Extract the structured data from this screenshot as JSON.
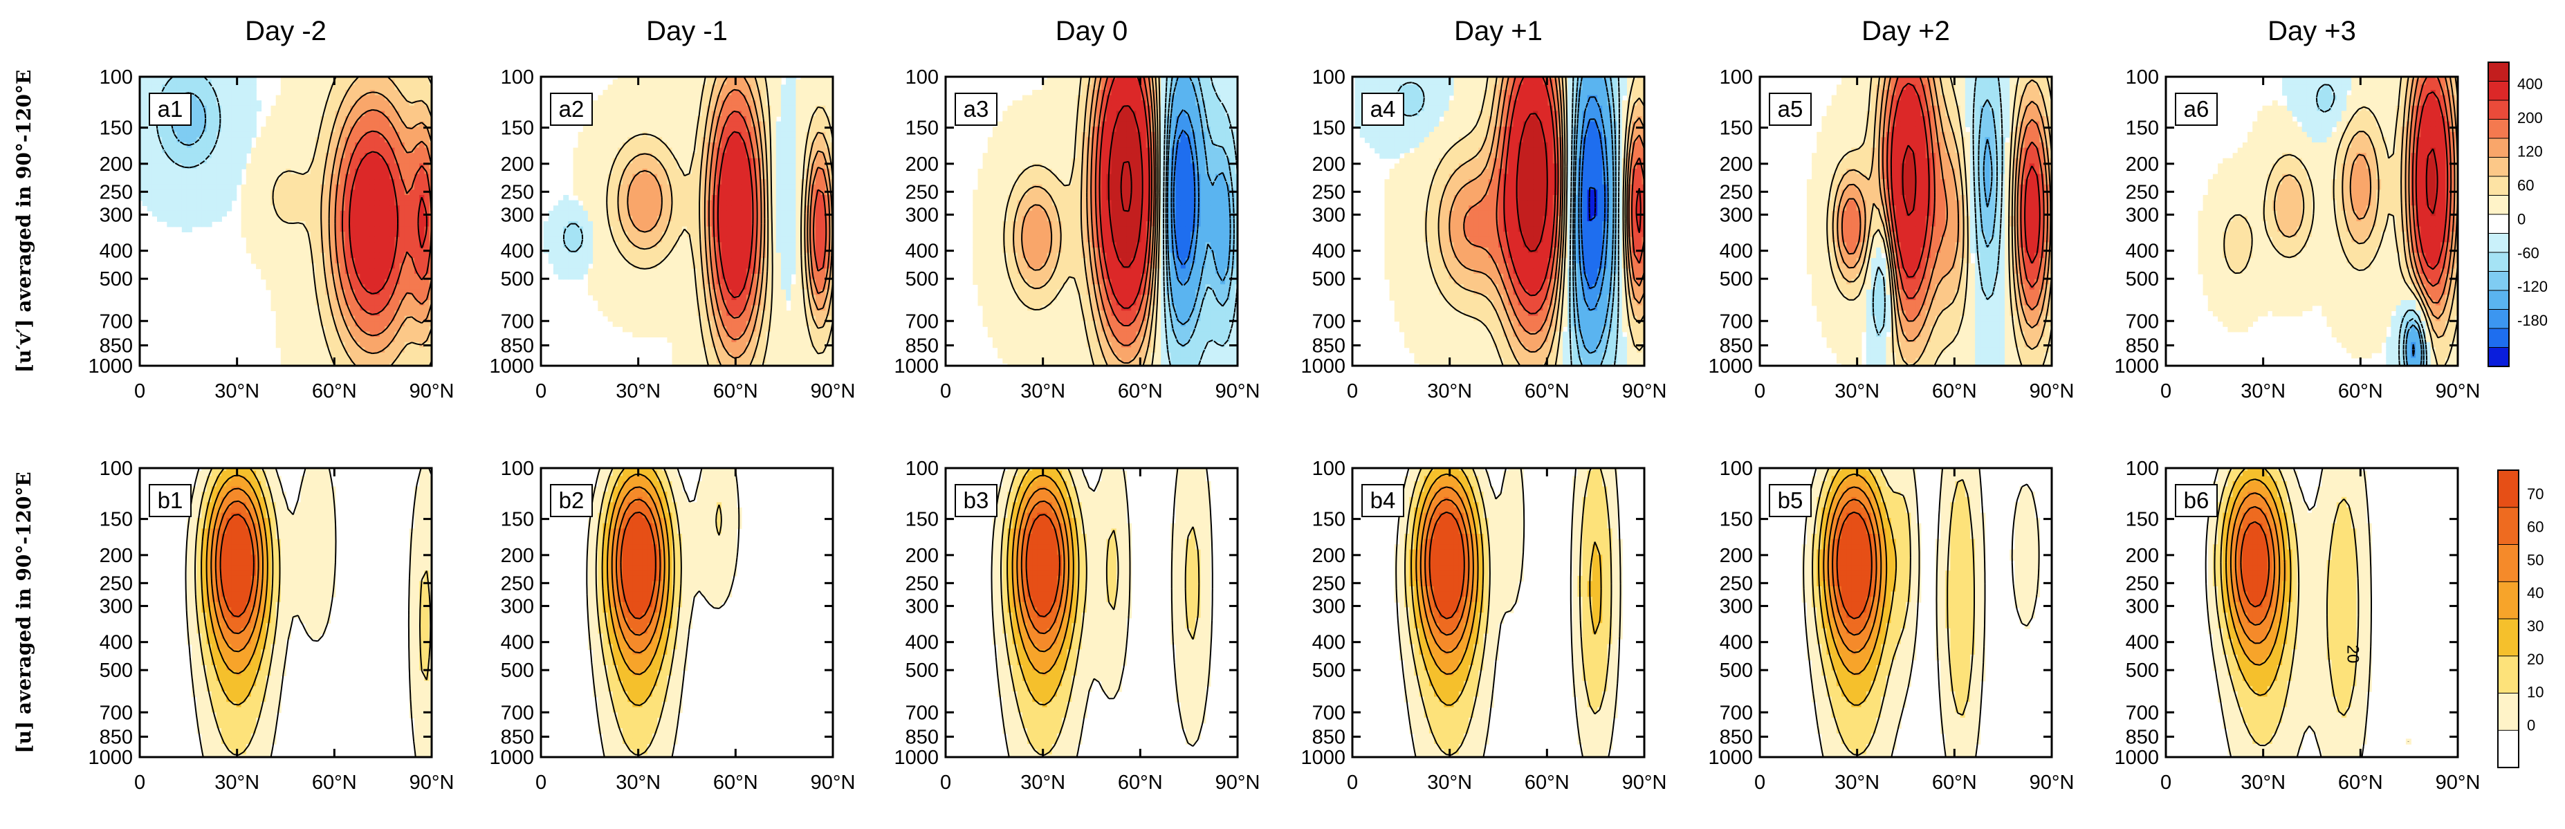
{
  "chart_data": {
    "type": "heatmap",
    "figure_kind": "contour panels (latitude x pressure)",
    "columns": [
      "Day -2",
      "Day -1",
      "Day 0",
      "Day +1",
      "Day +2",
      "Day +3"
    ],
    "x_ticks": [
      "0",
      "30°N",
      "60°N",
      "90°N"
    ],
    "x_range": [
      0,
      90
    ],
    "y_ticks": [
      "100",
      "150",
      "200",
      "250",
      "300",
      "400",
      "500",
      "700",
      "850",
      "1000"
    ],
    "y_tick_values": [
      100,
      150,
      200,
      250,
      300,
      400,
      500,
      700,
      850,
      1000
    ],
    "y_range": [
      100,
      1000
    ],
    "y_scale": "log, inverted",
    "rows": [
      {
        "ylabel": "[u′v′] averaged in 90°-120°E",
        "panels": [
          {
            "label": "a1",
            "features": [
              {
                "lat": 72,
                "p": 320,
                "value": 280,
                "wlat": 9,
                "wlogp": 0.3
              },
              {
                "lat": 88,
                "p": 320,
                "value": 150,
                "wlat": 3,
                "wlogp": 0.25
              },
              {
                "lat": 15,
                "p": 140,
                "value": -80,
                "wlat": 7,
                "wlogp": 0.12
              },
              {
                "lat": 45,
                "p": 260,
                "value": 40,
                "wlat": 5,
                "wlogp": 0.1
              }
            ]
          },
          {
            "label": "a2",
            "features": [
              {
                "lat": 60,
                "p": 300,
                "value": 300,
                "wlat": 6,
                "wlogp": 0.32
              },
              {
                "lat": 86,
                "p": 340,
                "value": 200,
                "wlat": 3,
                "wlogp": 0.22
              },
              {
                "lat": 32,
                "p": 270,
                "value": 120,
                "wlat": 7,
                "wlogp": 0.14
              },
              {
                "lat": 10,
                "p": 360,
                "value": -50,
                "wlat": 3,
                "wlogp": 0.05
              },
              {
                "lat": 74,
                "p": 260,
                "value": -40,
                "wlat": 3,
                "wlogp": 0.2
              }
            ]
          },
          {
            "label": "a3",
            "features": [
              {
                "lat": 56,
                "p": 240,
                "value": 420,
                "wlat": 7,
                "wlogp": 0.35
              },
              {
                "lat": 72,
                "p": 260,
                "value": -200,
                "wlat": 6,
                "wlogp": 0.35
              },
              {
                "lat": 86,
                "p": 340,
                "value": -90,
                "wlat": 3,
                "wlogp": 0.25
              },
              {
                "lat": 28,
                "p": 360,
                "value": 120,
                "wlat": 6,
                "wlogp": 0.15
              }
            ]
          },
          {
            "label": "a4",
            "features": [
              {
                "lat": 56,
                "p": 230,
                "value": 380,
                "wlat": 7,
                "wlogp": 0.35
              },
              {
                "lat": 73,
                "p": 270,
                "value": -200,
                "wlat": 6,
                "wlogp": 0.4
              },
              {
                "lat": 88,
                "p": 290,
                "value": 220,
                "wlat": 3,
                "wlogp": 0.25
              },
              {
                "lat": 36,
                "p": 330,
                "value": 120,
                "wlat": 8,
                "wlogp": 0.18
              },
              {
                "lat": 18,
                "p": 120,
                "value": -40,
                "wlat": 6,
                "wlogp": 0.08
              }
            ]
          },
          {
            "label": "a5",
            "features": [
              {
                "lat": 46,
                "p": 230,
                "value": 320,
                "wlat": 6,
                "wlogp": 0.35
              },
              {
                "lat": 84,
                "p": 300,
                "value": 240,
                "wlat": 4,
                "wlogp": 0.28
              },
              {
                "lat": 28,
                "p": 330,
                "value": 150,
                "wlat": 4,
                "wlogp": 0.14
              },
              {
                "lat": 70,
                "p": 220,
                "value": -90,
                "wlat": 4,
                "wlogp": 0.3
              },
              {
                "lat": 38,
                "p": 500,
                "value": -120,
                "wlat": 3,
                "wlogp": 0.18
              },
              {
                "lat": 60,
                "p": 320,
                "value": 90,
                "wlat": 4,
                "wlogp": 0.25
              }
            ]
          },
          {
            "label": "a6",
            "features": [
              {
                "lat": 82,
                "p": 230,
                "value": 320,
                "wlat": 5,
                "wlogp": 0.32
              },
              {
                "lat": 60,
                "p": 240,
                "value": 110,
                "wlat": 5,
                "wlogp": 0.18
              },
              {
                "lat": 38,
                "p": 280,
                "value": 90,
                "wlat": 5,
                "wlogp": 0.12
              },
              {
                "lat": 77,
                "p": 850,
                "value": -160,
                "wlat": 3,
                "wlogp": 0.12
              },
              {
                "lat": 22,
                "p": 380,
                "value": 50,
                "wlat": 4,
                "wlogp": 0.1
              },
              {
                "lat": 50,
                "p": 120,
                "value": -40,
                "wlat": 5,
                "wlogp": 0.08
              }
            ]
          }
        ]
      },
      {
        "ylabel": "[u] averaged in 90°-120°E",
        "panels": [
          {
            "label": "b1",
            "features": [
              {
                "lat": 30,
                "p": 200,
                "value": 70,
                "wlat": 7,
                "wlogp": 0.22
              },
              {
                "lat": 30,
                "p": 450,
                "value": 28,
                "wlat": 9,
                "wlogp": 0.4
              },
              {
                "lat": 88,
                "p": 350,
                "value": 22,
                "wlat": 4,
                "wlogp": 0.45
              },
              {
                "lat": 55,
                "p": 180,
                "value": 18,
                "wlat": 5,
                "wlogp": 0.3
              }
            ]
          },
          {
            "label": "b2",
            "features": [
              {
                "lat": 30,
                "p": 200,
                "value": 72,
                "wlat": 7,
                "wlogp": 0.22
              },
              {
                "lat": 30,
                "p": 450,
                "value": 28,
                "wlat": 9,
                "wlogp": 0.4
              },
              {
                "lat": 55,
                "p": 150,
                "value": 20,
                "wlat": 5,
                "wlogp": 0.25
              },
              {
                "lat": 80,
                "p": 350,
                "value": 8,
                "wlat": 8,
                "wlogp": 0.5
              }
            ]
          },
          {
            "label": "b3",
            "features": [
              {
                "lat": 30,
                "p": 200,
                "value": 70,
                "wlat": 7,
                "wlogp": 0.22
              },
              {
                "lat": 30,
                "p": 450,
                "value": 28,
                "wlat": 9,
                "wlogp": 0.4
              },
              {
                "lat": 52,
                "p": 220,
                "value": 20,
                "wlat": 4,
                "wlogp": 0.35
              },
              {
                "lat": 76,
                "p": 250,
                "value": 22,
                "wlat": 5,
                "wlogp": 0.45
              }
            ]
          },
          {
            "label": "b4",
            "features": [
              {
                "lat": 29,
                "p": 200,
                "value": 72,
                "wlat": 7,
                "wlogp": 0.22
              },
              {
                "lat": 30,
                "p": 450,
                "value": 28,
                "wlat": 9,
                "wlogp": 0.4
              },
              {
                "lat": 75,
                "p": 260,
                "value": 32,
                "wlat": 5,
                "wlogp": 0.45
              },
              {
                "lat": 50,
                "p": 150,
                "value": 15,
                "wlat": 3,
                "wlogp": 0.25
              }
            ]
          },
          {
            "label": "b5",
            "features": [
              {
                "lat": 29,
                "p": 200,
                "value": 72,
                "wlat": 7,
                "wlogp": 0.22
              },
              {
                "lat": 30,
                "p": 450,
                "value": 28,
                "wlat": 9,
                "wlogp": 0.4
              },
              {
                "lat": 62,
                "p": 280,
                "value": 28,
                "wlat": 5,
                "wlogp": 0.5
              },
              {
                "lat": 45,
                "p": 180,
                "value": 15,
                "wlat": 3,
                "wlogp": 0.3
              },
              {
                "lat": 82,
                "p": 200,
                "value": 14,
                "wlat": 5,
                "wlogp": 0.3
              }
            ]
          },
          {
            "label": "b6",
            "features": [
              {
                "lat": 27,
                "p": 200,
                "value": 66,
                "wlat": 7,
                "wlogp": 0.22
              },
              {
                "lat": 30,
                "p": 450,
                "value": 26,
                "wlat": 9,
                "wlogp": 0.4
              },
              {
                "lat": 55,
                "p": 300,
                "value": 26,
                "wlat": 6,
                "wlogp": 0.5
              },
              {
                "lat": 75,
                "p": 900,
                "value": 10,
                "wlat": 3,
                "wlogp": 0.1
              }
            ]
          }
        ]
      }
    ],
    "annotations": [
      {
        "panel": "b6",
        "text": "20"
      }
    ],
    "colorbars": [
      {
        "row": 0,
        "tick_labels": [
          "400",
          "200",
          "120",
          "60",
          "0",
          "-60",
          "-120",
          "-180"
        ],
        "levels": [
          -200,
          -180,
          -140,
          -120,
          -80,
          -60,
          -30,
          -0.5,
          0.5,
          30,
          60,
          90,
          120,
          160,
          200,
          300,
          400
        ],
        "colors": [
          "#0a1edc",
          "#1e6eef",
          "#3c96f0",
          "#5ab4f0",
          "#7fccf2",
          "#a5e3f5",
          "#caf1fa",
          "#ffffff",
          "#fff3c8",
          "#fde3a4",
          "#fcc888",
          "#f9a66a",
          "#f4794f",
          "#ea4b3a",
          "#dc2828",
          "#c31e1e"
        ]
      },
      {
        "row": 1,
        "tick_labels": [
          "70",
          "60",
          "50",
          "40",
          "30",
          "20",
          "10",
          "0"
        ],
        "levels": [
          0,
          10,
          20,
          30,
          40,
          50,
          60,
          70
        ],
        "colors": [
          "#ffffff",
          "#fff3c8",
          "#fde27a",
          "#f5c02c",
          "#f7a42a",
          "#f58a2a",
          "#ee6b20",
          "#e64f16"
        ]
      }
    ]
  }
}
